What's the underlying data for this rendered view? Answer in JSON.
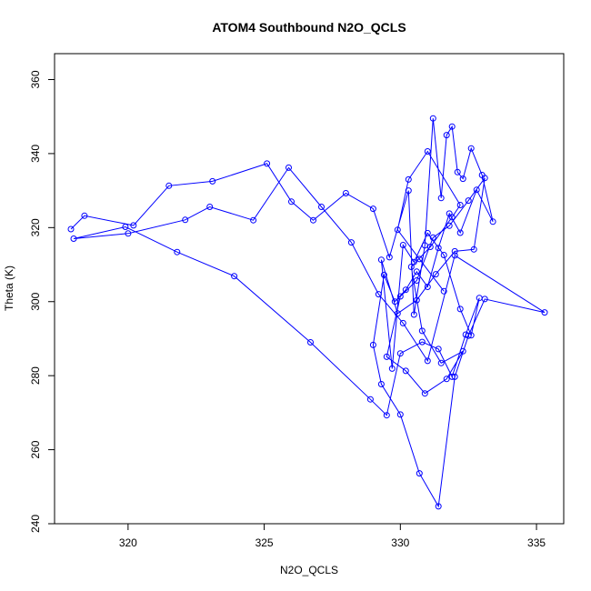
{
  "chart_data": {
    "type": "scatter",
    "title": "ATOM4 Southbound N2O_QCLS",
    "xlabel": "N2O_QCLS",
    "ylabel": "Theta (K)",
    "xlim": [
      317.3,
      336.0
    ],
    "ylim": [
      240,
      367
    ],
    "xticks": [
      320,
      325,
      330,
      335
    ],
    "yticks": [
      240,
      260,
      280,
      300,
      320,
      340,
      360
    ],
    "grid": false,
    "legend": "none",
    "mode": "lines+markers",
    "color": "#0000ff",
    "series": [
      {
        "x": [
          317.9,
          318.4,
          320.2,
          321.5,
          323.1,
          325.1,
          326.0,
          326.8,
          328.0,
          329.0,
          329.6,
          330.3,
          330.5,
          330.9,
          331.2,
          331.5,
          331.7,
          331.9,
          332.1,
          332.3,
          332.6,
          333.0,
          333.4,
          332.8,
          332.2,
          331.8,
          331.4,
          331.0,
          330.6,
          330.2,
          329.8,
          329.4,
          329.0,
          329.3,
          330.0,
          330.7,
          331.4,
          332.0,
          332.5,
          333.1,
          335.3,
          332.0,
          331.0,
          330.1,
          329.2,
          328.2,
          327.1,
          325.9,
          324.6,
          323.0,
          322.1,
          320.0,
          318.0,
          319.9,
          321.8,
          323.9,
          326.7,
          328.9,
          329.5,
          330.0,
          330.8,
          331.4,
          331.9,
          332.4,
          332.9,
          332.6,
          332.2,
          331.6,
          331.0,
          330.5,
          330.1,
          329.7,
          329.3,
          329.9,
          330.6,
          331.3,
          332.0,
          332.7,
          333.1,
          332.5,
          331.8,
          331.2,
          330.6,
          330.0,
          329.5,
          330.2,
          330.9,
          331.7,
          332.3,
          331.5,
          330.8,
          330.4,
          331.1,
          331.9,
          332.2,
          331.0,
          330.3,
          329.9,
          330.7,
          331.6
        ],
        "y": [
          319.6,
          323.2,
          320.6,
          331.3,
          332.5,
          337.3,
          327.0,
          322.0,
          329.3,
          325.1,
          312.0,
          330.0,
          296.5,
          315.2,
          349.5,
          328.0,
          345.0,
          347.3,
          335.0,
          333.2,
          341.4,
          334.2,
          321.6,
          330.2,
          318.6,
          323.8,
          314.5,
          304.0,
          308.1,
          303.2,
          300.0,
          307.2,
          288.3,
          277.7,
          269.5,
          253.6,
          244.7,
          279.7,
          290.8,
          300.7,
          297.1,
          312.5,
          284.0,
          294.2,
          302.0,
          316.0,
          325.6,
          336.2,
          322.0,
          325.6,
          322.1,
          318.4,
          317.0,
          320.2,
          313.4,
          306.9,
          289.0,
          273.6,
          269.3,
          286.0,
          289.1,
          287.2,
          279.7,
          291.1,
          301.0,
          290.9,
          298.0,
          312.6,
          318.5,
          310.7,
          315.3,
          281.9,
          311.3,
          296.8,
          300.4,
          307.4,
          313.6,
          314.1,
          333.4,
          327.3,
          320.5,
          317.3,
          305.7,
          301.4,
          285.1,
          281.3,
          275.2,
          279.1,
          286.6,
          283.4,
          292.1,
          309.4,
          314.8,
          322.8,
          326.1,
          340.6,
          333.0,
          319.4,
          311.5,
          302.8
        ]
      }
    ]
  }
}
